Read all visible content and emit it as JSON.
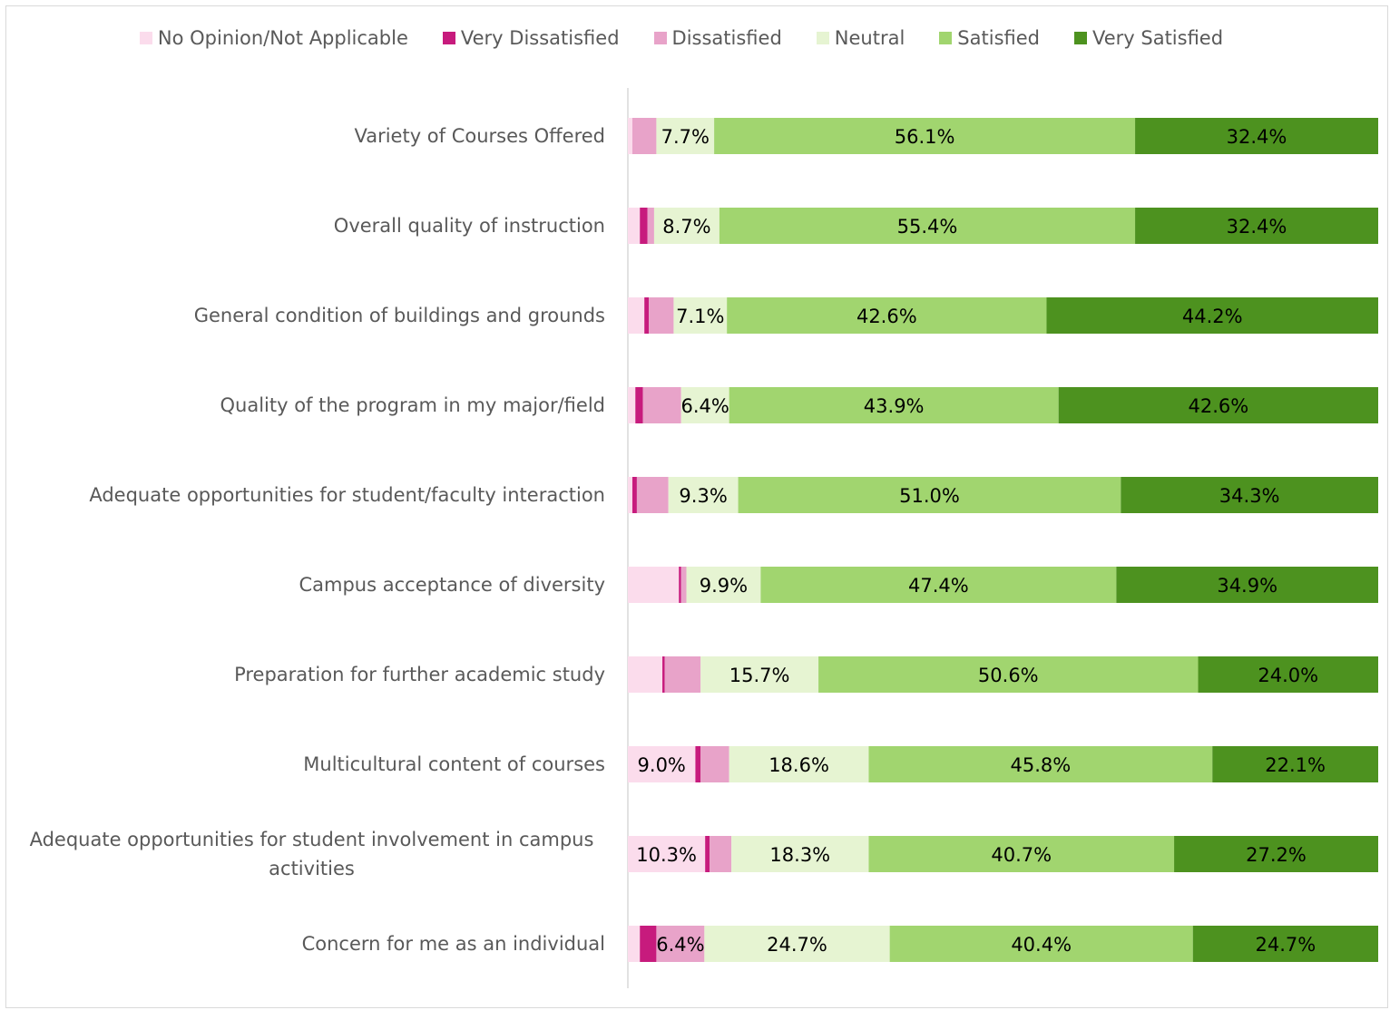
{
  "chart_data": {
    "type": "stacked_bar_horizontal",
    "categories": [
      "Variety of Courses Offered",
      "Overall quality of instruction",
      "General condition of buildings and grounds",
      "Quality of the program in my major/field",
      "Adequate opportunities for student/faculty interaction",
      "Campus acceptance of diversity",
      "Preparation for further academic study",
      "Multicultural content of courses",
      "Adequate opportunities for student involvement in campus activities",
      "Concern for me as an individual"
    ],
    "xlim": [
      0,
      100
    ],
    "legend": "top",
    "series": [
      {
        "name": "No Opinion/Not Applicable",
        "color": "#fbdcec",
        "values": [
          0.6,
          1.6,
          2.2,
          1.0,
          0.6,
          6.8,
          4.6,
          9.0,
          10.3,
          1.6
        ],
        "value_labels": [
          null,
          null,
          null,
          null,
          null,
          null,
          null,
          "9.0%",
          "10.3%",
          null
        ]
      },
      {
        "name": "Very Dissatisfied",
        "color": "#c71b7d",
        "values": [
          0,
          1.0,
          0.6,
          1.0,
          0.6,
          0.3,
          0.3,
          0.7,
          0.6,
          2.2
        ],
        "value_labels": [
          null,
          null,
          null,
          null,
          null,
          null,
          null,
          null,
          null,
          null
        ]
      },
      {
        "name": "Dissatisfied",
        "color": "#e8a3c9",
        "values": [
          3.2,
          0.9,
          3.3,
          5.1,
          4.2,
          0.7,
          4.8,
          3.8,
          2.9,
          6.4
        ],
        "value_labels": [
          null,
          null,
          null,
          null,
          null,
          null,
          null,
          null,
          null,
          "6.4%"
        ]
      },
      {
        "name": "Neutral",
        "color": "#e6f4d2",
        "values": [
          7.7,
          8.7,
          7.1,
          6.4,
          9.3,
          9.9,
          15.7,
          18.6,
          18.3,
          24.7
        ],
        "value_labels": [
          "7.7%",
          "8.7%",
          "7.1%",
          "6.4%",
          "9.3%",
          "9.9%",
          "15.7%",
          "18.6%",
          "18.3%",
          "24.7%"
        ]
      },
      {
        "name": "Satisfied",
        "color": "#a1d56f",
        "values": [
          56.1,
          55.4,
          42.6,
          43.9,
          51.0,
          47.4,
          50.6,
          45.8,
          40.7,
          40.4
        ],
        "value_labels": [
          "56.1%",
          "55.4%",
          "42.6%",
          "43.9%",
          "51.0%",
          "47.4%",
          "50.6%",
          "45.8%",
          "40.7%",
          "40.4%"
        ]
      },
      {
        "name": "Very Satisfied",
        "color": "#4d921f",
        "values": [
          32.4,
          32.4,
          44.2,
          42.6,
          34.3,
          34.9,
          24.0,
          22.1,
          27.2,
          24.7
        ],
        "value_labels": [
          "32.4%",
          "32.4%",
          "44.2%",
          "42.6%",
          "34.3%",
          "34.9%",
          "24.0%",
          "22.1%",
          "27.2%",
          "24.7%"
        ]
      }
    ]
  }
}
